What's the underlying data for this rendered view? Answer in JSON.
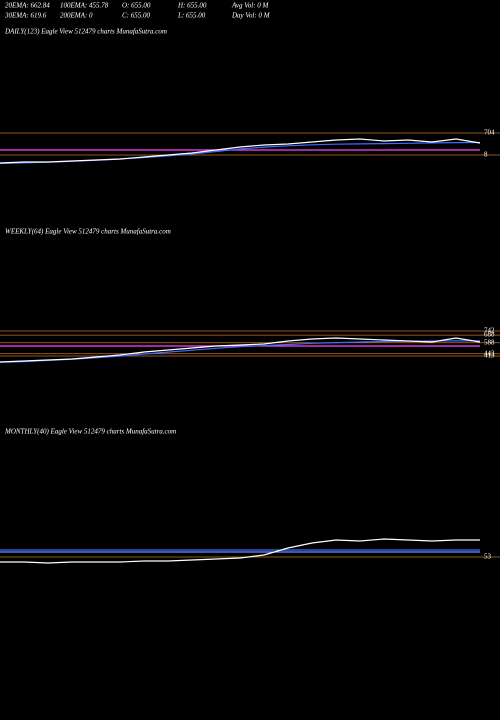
{
  "header": {
    "stats": [
      [
        "20EMA: 662.84",
        "100EMA: 455.78",
        "O: 655.00",
        "H: 655.00",
        "Avg Vol: 0  M"
      ],
      [
        "30EMA: 619.6",
        "200EMA: 0",
        "C: 655.00",
        "L: 655.00",
        "Day Vol: 0  M"
      ]
    ]
  },
  "chart_data": [
    {
      "type": "line",
      "title": "DAILY(123) Eagle   View  512479 charts MunafaSutra.com",
      "categories": [
        null,
        null,
        null,
        null,
        null,
        null,
        null,
        null,
        null,
        null,
        null,
        null,
        null,
        null,
        null,
        null,
        null,
        null,
        null,
        null,
        null
      ],
      "ylim": [
        -2203,
        3643
      ],
      "yticks": [
        704,
        8
      ],
      "grid": true,
      "grid_color": "#c87020",
      "series": [
        {
          "color": "#ff40ff",
          "values": [
            167,
            167,
            167,
            167,
            167,
            167,
            167,
            167,
            167,
            167,
            167,
            167,
            167,
            167,
            167,
            167,
            167,
            167,
            167,
            167,
            167
          ]
        },
        {
          "color": "#3b6cff",
          "values": [
            -260,
            -240,
            -220,
            -190,
            -160,
            -120,
            -70,
            -20,
            40,
            120,
            200,
            260,
            300,
            330,
            350,
            360,
            370,
            380,
            390,
            400,
            405
          ]
        },
        {
          "color": "#ffffff",
          "values": [
            -244,
            -212,
            -212,
            -181,
            -149,
            -118,
            -54,
            9,
            72,
            167,
            262,
            325,
            356,
            420,
            483,
            514,
            451,
            483,
            420,
            514,
            388
          ]
        }
      ]
    },
    {
      "type": "line",
      "title": "WEEKLY(64) Eagle   View  512479 charts MunafaSutra.com",
      "categories": [
        null,
        null,
        null,
        null,
        null,
        null,
        null,
        null,
        null,
        null,
        null,
        null,
        null,
        null,
        null,
        null,
        null,
        null,
        null,
        null,
        null
      ],
      "ylim": [
        -495,
        1940
      ],
      "yticks": [
        742,
        688,
        588,
        443,
        413
      ],
      "grid": true,
      "grid_color": "#c87020",
      "series": [
        {
          "color": "#ff40ff",
          "values": [
            545,
            545,
            545,
            545,
            545,
            545,
            545,
            545,
            545,
            545,
            545,
            545,
            545,
            545,
            545,
            545,
            545,
            545,
            545,
            545,
            545
          ]
        },
        {
          "color": "#3b6cff",
          "values": [
            330,
            340,
            355,
            370,
            390,
            410,
            440,
            465,
            490,
            515,
            535,
            550,
            565,
            580,
            590,
            598,
            604,
            608,
            610,
            612,
            613
          ]
        },
        {
          "color": "#ffffff",
          "values": [
            334,
            347,
            360,
            374,
            400,
            426,
            466,
            492,
            518,
            545,
            558,
            571,
            610,
            637,
            650,
            637,
            624,
            610,
            597,
            650,
            597
          ]
        }
      ]
    },
    {
      "type": "line",
      "title": "MONTHLY(40) Eagle   View  512479 charts MunafaSutra.com",
      "categories": [
        null,
        null,
        null,
        null,
        null,
        null,
        null,
        null,
        null,
        null,
        null,
        null,
        null,
        null,
        null,
        null,
        null,
        null,
        null,
        null,
        null
      ],
      "ylim": [
        -2852,
        4148
      ],
      "yticks": [
        53
      ],
      "grid": true,
      "grid_color": "#c87020",
      "series": [
        {
          "color": "#3b6cff",
          "values": [
            298,
            298,
            298,
            298,
            298,
            298,
            298,
            298,
            298,
            298,
            298,
            298,
            298,
            298,
            298,
            298,
            298,
            298,
            298,
            298,
            298
          ]
        },
        {
          "color": "#6a8cff",
          "values": [
            228,
            228,
            228,
            228,
            228,
            228,
            228,
            228,
            228,
            228,
            228,
            228,
            228,
            228,
            228,
            228,
            228,
            228,
            228,
            228,
            228
          ]
        },
        {
          "color": "#ffffff",
          "values": [
            -122,
            -122,
            -157,
            -122,
            -122,
            -122,
            -87,
            -87,
            -52,
            -17,
            18,
            123,
            368,
            543,
            648,
            613,
            683,
            648,
            613,
            648,
            648
          ]
        }
      ]
    }
  ]
}
